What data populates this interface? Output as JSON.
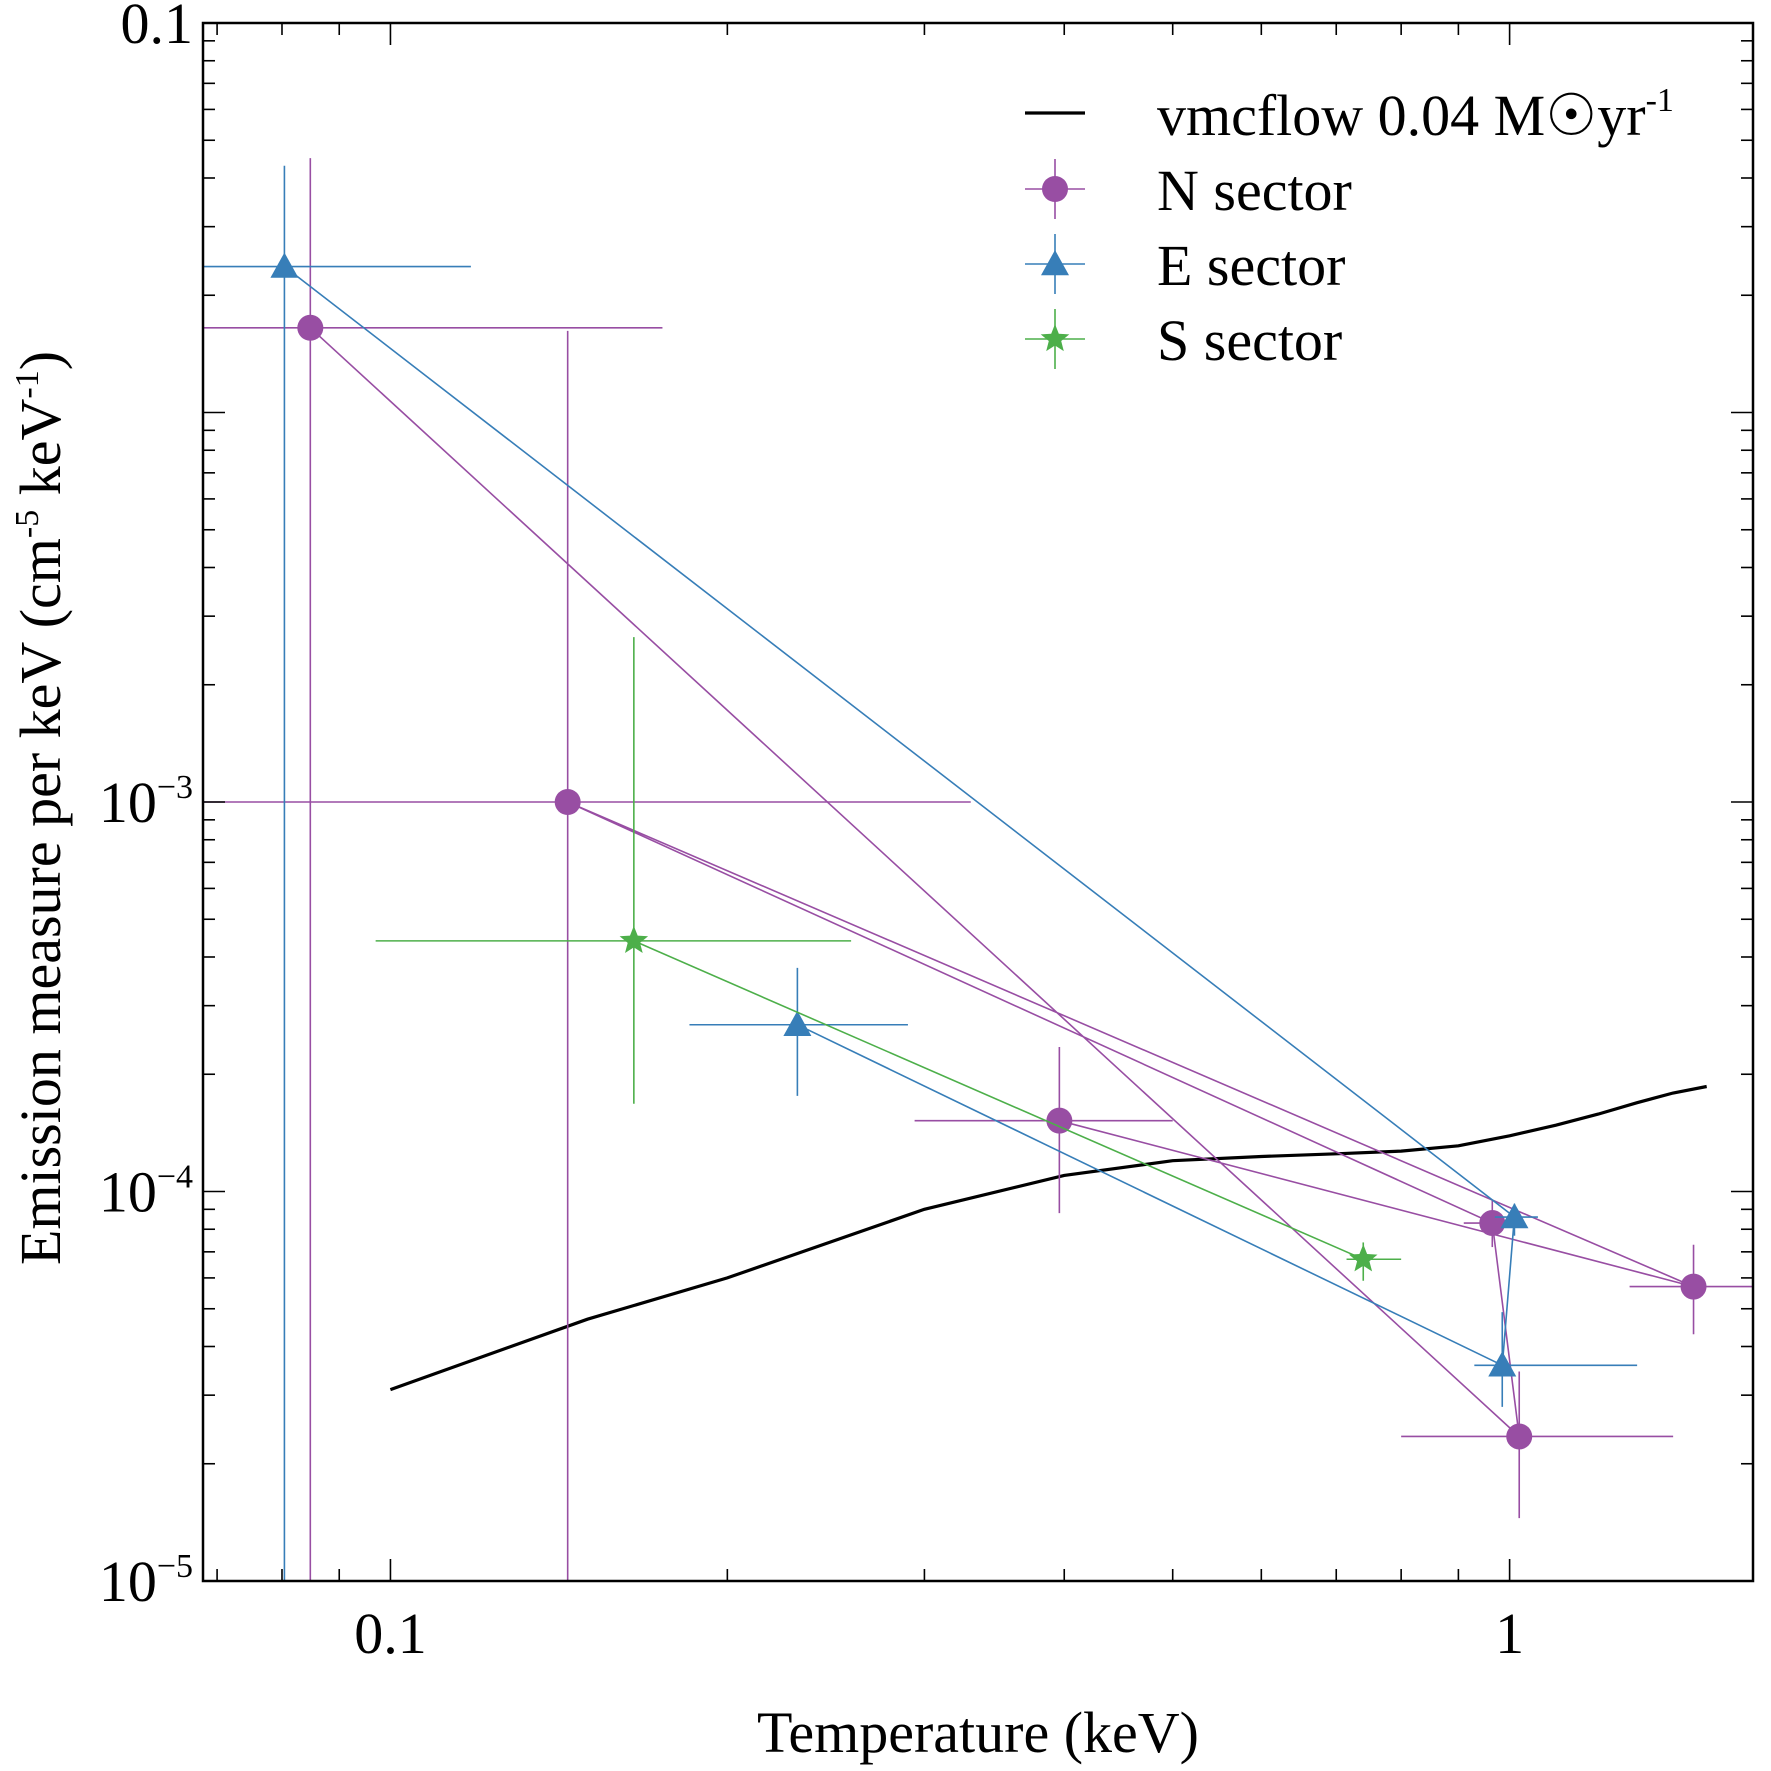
{
  "chart_data": {
    "type": "scatter",
    "xscale": "log",
    "yscale": "log",
    "xlim": [
      0.068,
      1.65
    ],
    "ylim": [
      1e-05,
      0.1
    ],
    "xlabel": "Temperature (keV)",
    "ylabel": {
      "main": "Emission measure per keV (cm",
      "exp1": "-5",
      "mid": " keV",
      "exp2": "-1",
      "end": ")"
    },
    "xticks": [
      {
        "value": 0.1,
        "label": "0.1"
      },
      {
        "value": 1,
        "label": "1"
      }
    ],
    "yticks": [
      {
        "value": 0.1,
        "label": "0.1",
        "base": "",
        "exp": ""
      },
      {
        "value": 0.001,
        "label": "",
        "base": "10",
        "exp": "−3"
      },
      {
        "value": 0.0001,
        "label": "",
        "base": "10",
        "exp": "−4"
      },
      {
        "value": 1e-05,
        "label": "",
        "base": "10",
        "exp": "−5"
      }
    ],
    "legend": {
      "position": "top-right",
      "entries": [
        {
          "key": "model",
          "label": "vmcflow 0.04 M",
          "suffix": "yr",
          "sup": "-1"
        },
        {
          "key": "N",
          "label": "N sector"
        },
        {
          "key": "E",
          "label": "E sector"
        },
        {
          "key": "S",
          "label": "S sector"
        }
      ]
    },
    "model": {
      "name": "vmcflow 0.04 M☉yr-1",
      "color": "#000000",
      "x": [
        0.1,
        0.15,
        0.2,
        0.3,
        0.4,
        0.5,
        0.6,
        0.7,
        0.8,
        0.9,
        1.0,
        1.1,
        1.2,
        1.3,
        1.4,
        1.5
      ],
      "y": [
        3.1e-05,
        4.7e-05,
        6e-05,
        9e-05,
        0.00011,
        0.00012,
        0.000123,
        0.000125,
        0.000127,
        0.000131,
        0.000139,
        0.000148,
        0.000158,
        0.000169,
        0.000179,
        0.000186
      ]
    },
    "series": [
      {
        "key": "N",
        "name": "N sector",
        "color": "#984ea3",
        "marker": "circle",
        "points": [
          {
            "x": 0.0848,
            "y": 0.0165,
            "xerr": [
              0.068,
              0.175
            ],
            "yerr": [
              1e-05,
              0.045
            ]
          },
          {
            "x": 0.144,
            "y": 0.001,
            "xerr": [
              0.068,
              0.33
            ],
            "yerr": [
              1e-05,
              0.0162
            ]
          },
          {
            "x": 0.396,
            "y": 0.000152,
            "xerr": [
              0.294,
              0.5
            ],
            "yerr": [
              8.8e-05,
              0.000235
            ]
          },
          {
            "x": 0.965,
            "y": 8.3e-05,
            "xerr": [
              0.91,
              1.03
            ],
            "yerr": [
              7.2e-05,
              9.5e-05
            ]
          },
          {
            "x": 1.02,
            "y": 2.35e-05,
            "xerr": [
              0.8,
              1.4
            ],
            "yerr": [
              1.45e-05,
              3.45e-05
            ]
          },
          {
            "x": 1.46,
            "y": 5.7e-05,
            "xerr": [
              1.28,
              1.65
            ],
            "yerr": [
              4.3e-05,
              7.3e-05
            ]
          }
        ],
        "path": [
          0,
          4,
          3,
          1,
          5,
          2
        ]
      },
      {
        "key": "E",
        "name": "E sector",
        "color": "#377eb8",
        "marker": "triangle",
        "points": [
          {
            "x": 0.0804,
            "y": 0.0237,
            "xerr": [
              0.068,
              0.118
            ],
            "yerr": [
              1e-05,
              0.043
            ]
          },
          {
            "x": 0.231,
            "y": 0.000268,
            "xerr": [
              0.185,
              0.29
            ],
            "yerr": [
              0.000176,
              0.000375
            ]
          },
          {
            "x": 0.985,
            "y": 3.58e-05,
            "xerr": [
              0.93,
              1.3
            ],
            "yerr": [
              2.8e-05,
              4.9e-05
            ]
          },
          {
            "x": 1.01,
            "y": 8.6e-05,
            "xerr": [
              0.97,
              1.06
            ],
            "yerr": [
              7.7e-05,
              9.3e-05
            ]
          }
        ],
        "path": [
          0,
          3,
          2,
          1
        ]
      },
      {
        "key": "S",
        "name": "S sector",
        "color": "#4daf4a",
        "marker": "star",
        "points": [
          {
            "x": 0.165,
            "y": 0.00044,
            "xerr": [
              0.097,
              0.258
            ],
            "yerr": [
              0.000168,
              0.00265
            ]
          },
          {
            "x": 0.74,
            "y": 6.7e-05,
            "xerr": [
              0.715,
              0.8
            ],
            "yerr": [
              5.9e-05,
              7.4e-05
            ]
          }
        ],
        "path": [
          0,
          1
        ]
      }
    ]
  }
}
